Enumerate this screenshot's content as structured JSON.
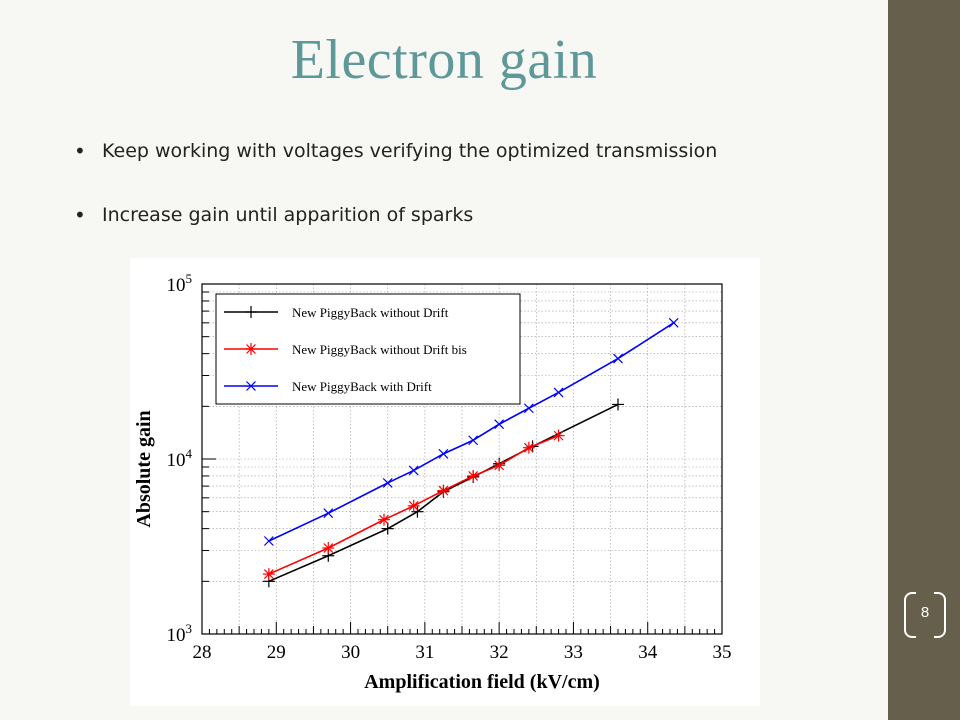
{
  "slide": {
    "title": "Electron gain",
    "bullets": [
      "Keep working with voltages verifying the optimized transmission",
      "Increase gain until apparition of sparks"
    ],
    "page_number": "8",
    "colors": {
      "title": "#5f9899",
      "sidebar": "#665f4b"
    }
  },
  "chart_data": {
    "type": "line",
    "xlabel": "Amplification field (kV/cm)",
    "ylabel": "Absolute gain",
    "xlim": [
      28,
      35
    ],
    "ylim": [
      1000,
      100000
    ],
    "y_scale": "log",
    "x_ticks": [
      28,
      29,
      30,
      31,
      32,
      33,
      34,
      35
    ],
    "y_ticks": [
      {
        "value": 1000,
        "base": "10",
        "exp": "3"
      },
      {
        "value": 10000,
        "base": "10",
        "exp": "4"
      },
      {
        "value": 100000,
        "base": "10",
        "exp": "5"
      }
    ],
    "grid": true,
    "legend_position": "top-left",
    "series": [
      {
        "name": "New PiggyBack without Drift",
        "color": "#000000",
        "marker": "plus",
        "x": [
          28.9,
          29.7,
          30.5,
          30.9,
          31.25,
          31.65,
          32.0,
          32.45,
          33.6
        ],
        "y": [
          2000,
          2800,
          4000,
          5000,
          6500,
          7900,
          9400,
          11800,
          20500
        ]
      },
      {
        "name": "New PiggyBack without Drift bis",
        "color": "#ff0000",
        "marker": "star",
        "x": [
          28.9,
          29.7,
          30.45,
          30.85,
          31.25,
          31.65,
          32.0,
          32.4,
          32.8
        ],
        "y": [
          2200,
          3100,
          4500,
          5400,
          6600,
          8000,
          9200,
          11600,
          13600
        ]
      },
      {
        "name": "New PiggyBack with Drift",
        "color": "#0000ff",
        "marker": "cross",
        "x": [
          28.9,
          29.7,
          30.5,
          30.85,
          31.25,
          31.65,
          32.0,
          32.4,
          32.8,
          33.6,
          34.35
        ],
        "y": [
          3400,
          4900,
          7300,
          8600,
          10700,
          12800,
          15800,
          19500,
          24000,
          37500,
          60000
        ]
      }
    ]
  }
}
